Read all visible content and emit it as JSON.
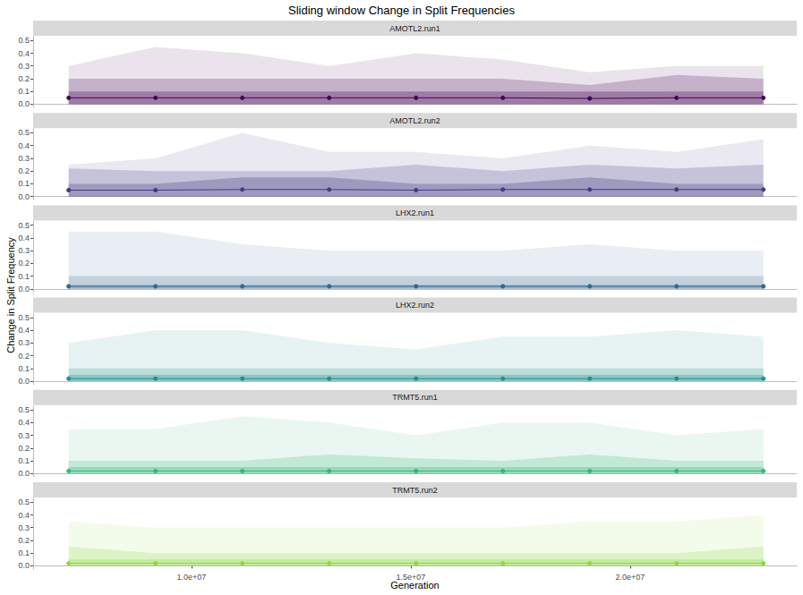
{
  "title": "Sliding window Change in Split Frequencies",
  "x_label": "Generation",
  "y_label": "Change in Split Frequency",
  "grid": false,
  "chart_data": [
    {
      "type": "line",
      "title": "AMOTL2.run1",
      "color": "#440154",
      "marker": "circle",
      "x": [
        7200000,
        9180000,
        11160000,
        13140000,
        15120000,
        17100000,
        19080000,
        21060000,
        23040000
      ],
      "values": [
        0.05,
        0.05,
        0.05,
        0.05,
        0.05,
        0.05,
        0.045,
        0.05,
        0.05
      ],
      "bands": [
        {
          "lower": [
            0,
            0,
            0,
            0,
            0,
            0,
            0,
            0,
            0
          ],
          "upper": [
            0.3,
            0.45,
            0.4,
            0.3,
            0.4,
            0.35,
            0.25,
            0.3,
            0.3
          ]
        },
        {
          "lower": [
            0,
            0,
            0,
            0,
            0,
            0,
            0,
            0,
            0
          ],
          "upper": [
            0.2,
            0.2,
            0.2,
            0.2,
            0.2,
            0.2,
            0.15,
            0.23,
            0.2
          ]
        },
        {
          "lower": [
            0,
            0,
            0,
            0,
            0,
            0,
            0,
            0,
            0
          ],
          "upper": [
            0.1,
            0.1,
            0.1,
            0.1,
            0.1,
            0.1,
            0.1,
            0.1,
            0.1
          ]
        }
      ],
      "xlim": [
        6390000,
        23800000
      ],
      "xticks": [
        {
          "value": 10000000,
          "label": "1.0e+07"
        },
        {
          "value": 15000000,
          "label": "1.5e+07"
        },
        {
          "value": 20000000,
          "label": "2.0e+07"
        }
      ],
      "ylim": [
        -0.025,
        0.53
      ],
      "yticks": [
        {
          "value": 0,
          "label": "0.0"
        },
        {
          "value": 0.1,
          "label": "0.1"
        },
        {
          "value": 0.2,
          "label": "0.2"
        },
        {
          "value": 0.3,
          "label": "0.3"
        },
        {
          "value": 0.4,
          "label": "0.4"
        },
        {
          "value": 0.5,
          "label": "0.5"
        }
      ],
      "tick_labels": "y"
    },
    {
      "type": "line",
      "title": "AMOTL2.run2",
      "color": "#443A83",
      "marker": "circle",
      "x": [
        7200000,
        9180000,
        11160000,
        13140000,
        15120000,
        17100000,
        19080000,
        21060000,
        23040000
      ],
      "values": [
        0.05,
        0.05,
        0.055,
        0.055,
        0.05,
        0.055,
        0.055,
        0.055,
        0.055
      ],
      "bands": [
        {
          "lower": [
            0,
            0,
            0,
            0,
            0,
            0,
            0,
            0,
            0
          ],
          "upper": [
            0.25,
            0.3,
            0.5,
            0.35,
            0.35,
            0.3,
            0.4,
            0.35,
            0.45
          ]
        },
        {
          "lower": [
            0,
            0,
            0,
            0,
            0,
            0,
            0,
            0,
            0
          ],
          "upper": [
            0.22,
            0.2,
            0.2,
            0.2,
            0.25,
            0.2,
            0.25,
            0.22,
            0.25
          ]
        },
        {
          "lower": [
            0,
            0,
            0,
            0,
            0,
            0,
            0,
            0,
            0
          ],
          "upper": [
            0.1,
            0.1,
            0.15,
            0.15,
            0.1,
            0.1,
            0.15,
            0.1,
            0.1
          ]
        }
      ],
      "xlim": [
        6390000,
        23800000
      ],
      "xticks": [
        {
          "value": 10000000,
          "label": "1.0e+07"
        },
        {
          "value": 15000000,
          "label": "1.5e+07"
        },
        {
          "value": 20000000,
          "label": "2.0e+07"
        }
      ],
      "ylim": [
        -0.025,
        0.53
      ],
      "yticks": [
        {
          "value": 0,
          "label": "0.0"
        },
        {
          "value": 0.1,
          "label": "0.1"
        },
        {
          "value": 0.2,
          "label": "0.2"
        },
        {
          "value": 0.3,
          "label": "0.3"
        },
        {
          "value": 0.4,
          "label": "0.4"
        },
        {
          "value": 0.5,
          "label": "0.5"
        }
      ],
      "tick_labels": "y"
    },
    {
      "type": "line",
      "title": "LHX2.run1",
      "color": "#31688E",
      "marker": "circle",
      "x": [
        7200000,
        9180000,
        11160000,
        13140000,
        15120000,
        17100000,
        19080000,
        21060000,
        23040000
      ],
      "values": [
        0.02,
        0.02,
        0.02,
        0.02,
        0.02,
        0.02,
        0.02,
        0.02,
        0.02
      ],
      "bands": [
        {
          "lower": [
            0,
            0,
            0,
            0,
            0,
            0,
            0,
            0,
            0
          ],
          "upper": [
            0.45,
            0.45,
            0.35,
            0.3,
            0.3,
            0.3,
            0.35,
            0.3,
            0.3
          ]
        },
        {
          "lower": [
            0,
            0,
            0,
            0,
            0,
            0,
            0,
            0,
            0
          ],
          "upper": [
            0.1,
            0.1,
            0.1,
            0.1,
            0.1,
            0.1,
            0.1,
            0.1,
            0.1
          ]
        },
        {
          "lower": [
            0,
            0,
            0,
            0,
            0,
            0,
            0,
            0,
            0
          ],
          "upper": [
            0.03,
            0.03,
            0.03,
            0.03,
            0.03,
            0.03,
            0.03,
            0.03,
            0.03
          ]
        }
      ],
      "xlim": [
        6390000,
        23800000
      ],
      "xticks": [
        {
          "value": 10000000,
          "label": "1.0e+07"
        },
        {
          "value": 15000000,
          "label": "1.5e+07"
        },
        {
          "value": 20000000,
          "label": "2.0e+07"
        }
      ],
      "ylim": [
        -0.025,
        0.53
      ],
      "yticks": [
        {
          "value": 0,
          "label": "0.0"
        },
        {
          "value": 0.1,
          "label": "0.1"
        },
        {
          "value": 0.2,
          "label": "0.2"
        },
        {
          "value": 0.3,
          "label": "0.3"
        },
        {
          "value": 0.4,
          "label": "0.4"
        },
        {
          "value": 0.5,
          "label": "0.5"
        }
      ],
      "tick_labels": "y"
    },
    {
      "type": "line",
      "title": "LHX2.run2",
      "color": "#21908C",
      "marker": "circle",
      "x": [
        7200000,
        9180000,
        11160000,
        13140000,
        15120000,
        17100000,
        19080000,
        21060000,
        23040000
      ],
      "values": [
        0.02,
        0.02,
        0.02,
        0.02,
        0.02,
        0.02,
        0.02,
        0.02,
        0.02
      ],
      "bands": [
        {
          "lower": [
            0,
            0,
            0,
            0,
            0,
            0,
            0,
            0,
            0
          ],
          "upper": [
            0.3,
            0.4,
            0.4,
            0.3,
            0.25,
            0.35,
            0.35,
            0.4,
            0.35
          ]
        },
        {
          "lower": [
            0,
            0,
            0,
            0,
            0,
            0,
            0,
            0,
            0
          ],
          "upper": [
            0.1,
            0.1,
            0.1,
            0.1,
            0.1,
            0.1,
            0.1,
            0.1,
            0.1
          ]
        },
        {
          "lower": [
            0,
            0,
            0,
            0,
            0,
            0,
            0,
            0,
            0
          ],
          "upper": [
            0.05,
            0.05,
            0.05,
            0.05,
            0.05,
            0.05,
            0.05,
            0.05,
            0.05
          ]
        }
      ],
      "xlim": [
        6390000,
        23800000
      ],
      "xticks": [
        {
          "value": 10000000,
          "label": "1.0e+07"
        },
        {
          "value": 15000000,
          "label": "1.5e+07"
        },
        {
          "value": 20000000,
          "label": "2.0e+07"
        }
      ],
      "ylim": [
        -0.025,
        0.53
      ],
      "yticks": [
        {
          "value": 0,
          "label": "0.0"
        },
        {
          "value": 0.1,
          "label": "0.1"
        },
        {
          "value": 0.2,
          "label": "0.2"
        },
        {
          "value": 0.3,
          "label": "0.3"
        },
        {
          "value": 0.4,
          "label": "0.4"
        },
        {
          "value": 0.5,
          "label": "0.5"
        }
      ],
      "tick_labels": "y"
    },
    {
      "type": "line",
      "title": "TRMT5.run1",
      "color": "#35B779",
      "marker": "circle",
      "x": [
        7200000,
        9180000,
        11160000,
        13140000,
        15120000,
        17100000,
        19080000,
        21060000,
        23040000
      ],
      "values": [
        0.02,
        0.02,
        0.02,
        0.02,
        0.02,
        0.02,
        0.02,
        0.02,
        0.02
      ],
      "bands": [
        {
          "lower": [
            0,
            0,
            0,
            0,
            0,
            0,
            0,
            0,
            0
          ],
          "upper": [
            0.35,
            0.35,
            0.45,
            0.4,
            0.3,
            0.4,
            0.4,
            0.3,
            0.35
          ]
        },
        {
          "lower": [
            0,
            0,
            0,
            0,
            0,
            0,
            0,
            0,
            0
          ],
          "upper": [
            0.1,
            0.1,
            0.1,
            0.15,
            0.12,
            0.1,
            0.15,
            0.1,
            0.1
          ]
        },
        {
          "lower": [
            0,
            0,
            0,
            0,
            0,
            0,
            0,
            0,
            0
          ],
          "upper": [
            0.05,
            0.05,
            0.05,
            0.05,
            0.05,
            0.05,
            0.05,
            0.05,
            0.05
          ]
        }
      ],
      "xlim": [
        6390000,
        23800000
      ],
      "xticks": [
        {
          "value": 10000000,
          "label": "1.0e+07"
        },
        {
          "value": 15000000,
          "label": "1.5e+07"
        },
        {
          "value": 20000000,
          "label": "2.0e+07"
        }
      ],
      "ylim": [
        -0.025,
        0.53
      ],
      "yticks": [
        {
          "value": 0,
          "label": "0.0"
        },
        {
          "value": 0.1,
          "label": "0.1"
        },
        {
          "value": 0.2,
          "label": "0.2"
        },
        {
          "value": 0.3,
          "label": "0.3"
        },
        {
          "value": 0.4,
          "label": "0.4"
        },
        {
          "value": 0.5,
          "label": "0.5"
        }
      ],
      "tick_labels": "y"
    },
    {
      "type": "line",
      "title": "TRMT5.run2",
      "color": "#8FD744",
      "marker": "circle",
      "x": [
        7200000,
        9180000,
        11160000,
        13140000,
        15120000,
        17100000,
        19080000,
        21060000,
        23040000
      ],
      "values": [
        0.02,
        0.02,
        0.02,
        0.02,
        0.02,
        0.02,
        0.02,
        0.02,
        0.02
      ],
      "bands": [
        {
          "lower": [
            0,
            0,
            0,
            0,
            0,
            0,
            0,
            0,
            0
          ],
          "upper": [
            0.35,
            0.3,
            0.3,
            0.3,
            0.3,
            0.3,
            0.35,
            0.35,
            0.4
          ]
        },
        {
          "lower": [
            0,
            0,
            0,
            0,
            0,
            0,
            0,
            0,
            0
          ],
          "upper": [
            0.15,
            0.1,
            0.1,
            0.1,
            0.1,
            0.1,
            0.1,
            0.1,
            0.15
          ]
        },
        {
          "lower": [
            0,
            0,
            0,
            0,
            0,
            0,
            0,
            0,
            0
          ],
          "upper": [
            0.05,
            0.05,
            0.05,
            0.05,
            0.05,
            0.05,
            0.05,
            0.05,
            0.05
          ]
        }
      ],
      "xlim": [
        6390000,
        23800000
      ],
      "xticks": [
        {
          "value": 10000000,
          "label": "1.0e+07"
        },
        {
          "value": 15000000,
          "label": "1.5e+07"
        },
        {
          "value": 20000000,
          "label": "2.0e+07"
        }
      ],
      "ylim": [
        -0.025,
        0.53
      ],
      "yticks": [
        {
          "value": 0,
          "label": "0.0"
        },
        {
          "value": 0.1,
          "label": "0.1"
        },
        {
          "value": 0.2,
          "label": "0.2"
        },
        {
          "value": 0.3,
          "label": "0.3"
        },
        {
          "value": 0.4,
          "label": "0.4"
        },
        {
          "value": 0.5,
          "label": "0.5"
        }
      ],
      "tick_labels": true
    }
  ]
}
